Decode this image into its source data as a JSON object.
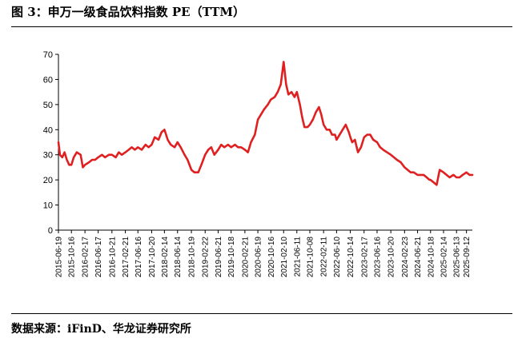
{
  "figure": {
    "title": "图 3：申万一级食品饮料指数 PE（TTM）",
    "source": "数据来源：iFinD、华龙证券研究所"
  },
  "colors": {
    "series_line": "#e02020",
    "axis": "#000000",
    "background": "#ffffff"
  },
  "chart_data": {
    "type": "line",
    "title": "",
    "xlabel": "",
    "ylabel": "",
    "ylim": [
      0,
      70
    ],
    "yticks": [
      0,
      10,
      20,
      30,
      40,
      50,
      60,
      70
    ],
    "xlim": [
      "2015-06-19",
      "2025-11-05"
    ],
    "xticks": [
      "2015-06-19",
      "2015-10-16",
      "2016-02-17",
      "2016-06-17",
      "2016-10-21",
      "2017-02-21",
      "2017-06-16",
      "2017-10-20",
      "2018-02-14",
      "2018-06-14",
      "2018-10-19",
      "2019-02-22",
      "2019-06-21",
      "2019-10-18",
      "2020-02-21",
      "2020-06-19",
      "2020-10-16",
      "2021-02-10",
      "2021-06-11",
      "2021-10-08",
      "2022-02-11",
      "2022-06-10",
      "2022-10-14",
      "2023-02-17",
      "2023-06-16",
      "2023-10-20",
      "2024-02-23",
      "2024-06-21",
      "2024-10-18",
      "2025-02-14",
      "2025-06-13",
      "2025-09-12"
    ],
    "grid": false,
    "legend": "none",
    "series": [
      {
        "x": [
          "2015-06-19",
          "2015-07-03",
          "2015-07-24",
          "2015-08-14",
          "2015-09-04",
          "2015-09-25",
          "2015-10-16",
          "2015-11-06",
          "2015-12-04",
          "2016-01-08",
          "2016-01-29",
          "2016-02-17",
          "2016-03-25",
          "2016-04-22",
          "2016-05-20",
          "2016-06-17",
          "2016-07-22",
          "2016-08-19",
          "2016-09-23",
          "2016-10-21",
          "2016-11-25",
          "2016-12-23",
          "2017-01-20",
          "2017-02-21",
          "2017-03-24",
          "2017-04-21",
          "2017-05-19",
          "2017-06-16",
          "2017-07-21",
          "2017-08-25",
          "2017-09-22",
          "2017-10-20",
          "2017-11-17",
          "2017-12-22",
          "2018-01-19",
          "2018-02-14",
          "2018-03-16",
          "2018-04-13",
          "2018-05-18",
          "2018-06-14",
          "2018-07-13",
          "2018-08-17",
          "2018-09-14",
          "2018-10-19",
          "2018-11-16",
          "2018-12-21",
          "2019-01-18",
          "2019-02-22",
          "2019-03-22",
          "2019-04-19",
          "2019-05-17",
          "2019-06-21",
          "2019-07-19",
          "2019-08-16",
          "2019-09-20",
          "2019-10-18",
          "2019-11-22",
          "2019-12-20",
          "2020-01-17",
          "2020-02-21",
          "2020-03-20",
          "2020-04-17",
          "2020-05-22",
          "2020-06-19",
          "2020-07-17",
          "2020-08-14",
          "2020-09-18",
          "2020-10-16",
          "2020-11-20",
          "2020-12-18",
          "2021-01-15",
          "2021-02-10",
          "2021-03-05",
          "2021-03-26",
          "2021-04-23",
          "2021-05-21",
          "2021-06-11",
          "2021-07-09",
          "2021-07-30",
          "2021-08-20",
          "2021-09-17",
          "2021-10-08",
          "2021-11-05",
          "2021-12-03",
          "2021-12-31",
          "2022-01-21",
          "2022-02-11",
          "2022-03-11",
          "2022-04-08",
          "2022-04-29",
          "2022-05-27",
          "2022-06-10",
          "2022-07-08",
          "2022-08-05",
          "2022-09-02",
          "2022-09-30",
          "2022-10-14",
          "2022-10-31",
          "2022-11-25",
          "2022-12-23",
          "2023-01-20",
          "2023-02-17",
          "2023-03-17",
          "2023-04-14",
          "2023-05-12",
          "2023-06-16",
          "2023-07-14",
          "2023-08-11",
          "2023-09-15",
          "2023-10-20",
          "2023-11-17",
          "2023-12-15",
          "2024-01-19",
          "2024-02-06",
          "2024-02-23",
          "2024-03-22",
          "2024-04-19",
          "2024-05-17",
          "2024-06-21",
          "2024-07-19",
          "2024-08-16",
          "2024-09-13",
          "2024-10-08",
          "2024-10-18",
          "2024-11-15",
          "2024-12-13",
          "2025-01-10",
          "2025-02-14",
          "2025-03-14",
          "2025-04-11",
          "2025-05-16",
          "2025-06-13",
          "2025-07-11",
          "2025-08-08",
          "2025-09-12",
          "2025-10-10",
          "2025-11-05"
        ],
        "values": [
          35,
          30,
          29,
          31,
          28,
          26,
          26,
          29,
          31,
          30,
          25,
          26,
          27,
          28,
          28,
          29,
          30,
          29,
          30,
          30,
          29,
          31,
          30,
          31,
          32,
          33,
          32,
          33,
          32,
          34,
          33,
          34,
          37,
          36,
          39,
          40,
          36,
          34,
          33,
          35,
          33,
          30,
          28,
          24,
          23,
          23,
          26,
          30,
          32,
          33,
          30,
          32,
          34,
          33,
          34,
          33,
          34,
          33,
          33,
          32,
          31,
          35,
          38,
          44,
          46,
          48,
          50,
          52,
          53,
          55,
          58,
          67,
          58,
          54,
          55,
          53,
          55,
          50,
          45,
          41,
          41,
          42,
          44,
          47,
          49,
          46,
          42,
          40,
          40,
          38,
          38,
          36,
          38,
          40,
          42,
          39,
          37,
          35,
          36,
          31,
          33,
          37,
          38,
          38,
          36,
          35,
          33,
          32,
          31,
          30,
          29,
          28,
          27,
          26,
          25,
          24,
          23,
          23,
          22,
          22,
          22,
          21,
          20,
          20,
          19,
          18,
          24,
          23,
          22,
          21,
          22,
          21,
          21,
          22,
          23,
          22,
          22
        ]
      }
    ]
  }
}
